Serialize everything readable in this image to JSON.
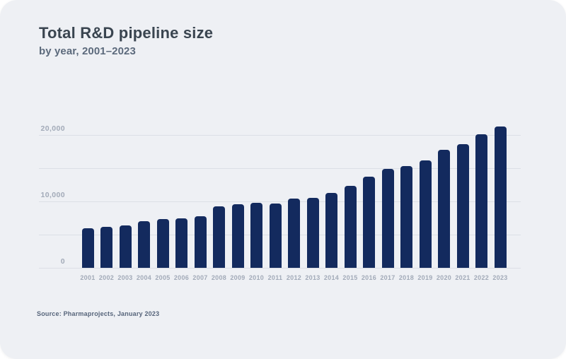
{
  "header": {
    "title": "Total R&D pipeline size",
    "subtitle": "by year, 2001–2023"
  },
  "footer": {
    "source": "Source: Pharmaprojects, January 2023"
  },
  "chart_data": {
    "type": "bar",
    "title": "Total R&D pipeline size",
    "subtitle": "by year, 2001–2023",
    "source": "Source: Pharmaprojects, January 2023",
    "categories": [
      "2001",
      "2002",
      "2003",
      "2004",
      "2005",
      "2006",
      "2007",
      "2008",
      "2009",
      "2010",
      "2011",
      "2012",
      "2013",
      "2014",
      "2015",
      "2016",
      "2017",
      "2018",
      "2019",
      "2020",
      "2021",
      "2022",
      "2023"
    ],
    "values": [
      5995,
      6198,
      6416,
      6994,
      7360,
      7406,
      7737,
      9217,
      9605,
      9737,
      9713,
      10452,
      10479,
      11307,
      12300,
      13718,
      14872,
      15267,
      16181,
      17737,
      18582,
      20109,
      21292
    ],
    "xlabel": "",
    "ylabel": "",
    "ylim": [
      0,
      21500
    ],
    "grid": true,
    "gridline_values": [
      0,
      5000,
      10000,
      15000,
      20000
    ],
    "yticks": [
      {
        "value": 0,
        "label": "0"
      },
      {
        "value": 10000,
        "label": "10,000"
      },
      {
        "value": 20000,
        "label": "20,000"
      }
    ],
    "legend_position": "none",
    "bar_color": "#132a5e",
    "background_color": "#eef0f4",
    "gridline_color": "#dcdfe6",
    "tick_label_color": "#a2aab8"
  }
}
